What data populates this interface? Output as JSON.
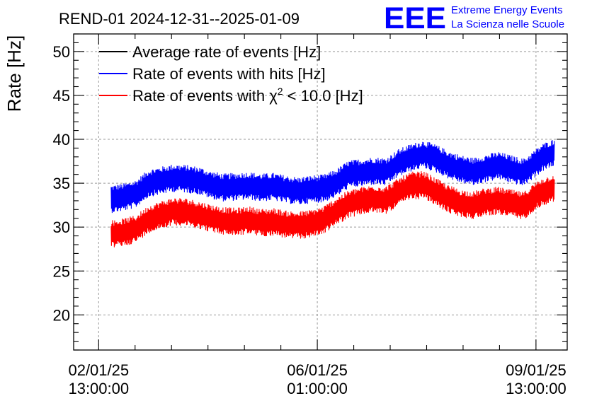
{
  "chart_data": {
    "type": "line",
    "title": "REND-01 2024-12-31--2025-01-09",
    "xlabel": "",
    "ylabel": "Rate [Hz]",
    "ylim": [
      16,
      52
    ],
    "yticks": [
      20,
      25,
      30,
      35,
      40,
      45,
      50
    ],
    "x_unit": "days since 2025-01-02 13:00:00",
    "xlim": [
      -0.4,
      7.5
    ],
    "xticks": [
      {
        "x": 0,
        "date": "02/01/25",
        "time": "13:00:00"
      },
      {
        "x": 3.5,
        "date": "06/01/25",
        "time": "01:00:00"
      },
      {
        "x": 7,
        "date": "09/01/25",
        "time": "13:00:00"
      }
    ],
    "grid": true,
    "legend_position": "top-left",
    "legend": [
      {
        "series": "avg",
        "pre": "Average rate of events [Hz]",
        "sup": "",
        "post": ""
      },
      {
        "series": "hits",
        "pre": "Rate of events with hits [Hz]",
        "sup": "",
        "post": ""
      },
      {
        "series": "chi2",
        "pre": "Rate of events with χ",
        "sup": "2",
        "post": " < 10.0 [Hz]"
      }
    ],
    "series": [
      {
        "id": "avg",
        "name": "Average rate of events [Hz]",
        "color": "#000000",
        "x": [],
        "values": []
      },
      {
        "id": "hits",
        "name": "Rate of events with hits [Hz]",
        "color": "#0000ff",
        "noise_band": 3.2,
        "x": [
          0.2,
          0.4,
          0.6,
          0.8,
          1.0,
          1.2,
          1.4,
          1.6,
          1.8,
          2.0,
          2.2,
          2.4,
          2.6,
          2.8,
          3.0,
          3.2,
          3.4,
          3.6,
          3.8,
          4.0,
          4.2,
          4.4,
          4.6,
          4.8,
          5.0,
          5.2,
          5.4,
          5.6,
          5.8,
          6.0,
          6.2,
          6.4,
          6.6,
          6.8,
          7.0,
          7.1,
          7.3
        ],
        "values": [
          33.2,
          33.4,
          33.8,
          35.0,
          35.3,
          35.6,
          35.5,
          35.3,
          34.8,
          34.5,
          34.6,
          34.7,
          34.5,
          34.6,
          34.3,
          34.1,
          34.3,
          34.4,
          35.0,
          36.0,
          36.2,
          36.4,
          36.3,
          37.3,
          37.9,
          38.3,
          37.8,
          37.1,
          36.6,
          36.3,
          36.7,
          37.0,
          36.6,
          36.2,
          37.3,
          37.9,
          38.5
        ]
      },
      {
        "id": "chi2",
        "name": "Rate of events with χ² < 10.0 [Hz]",
        "color": "#ff0000",
        "noise_band": 3.2,
        "x": [
          0.2,
          0.4,
          0.6,
          0.8,
          1.0,
          1.2,
          1.4,
          1.6,
          1.8,
          2.0,
          2.2,
          2.4,
          2.6,
          2.8,
          3.0,
          3.2,
          3.4,
          3.6,
          3.8,
          4.0,
          4.2,
          4.4,
          4.6,
          4.8,
          5.0,
          5.2,
          5.4,
          5.6,
          5.8,
          6.0,
          6.2,
          6.4,
          6.6,
          6.8,
          7.0,
          7.1,
          7.3
        ],
        "values": [
          29.2,
          29.4,
          29.8,
          30.9,
          31.4,
          31.8,
          31.7,
          31.4,
          31.0,
          30.7,
          30.6,
          30.8,
          30.5,
          30.6,
          30.3,
          30.2,
          30.4,
          30.8,
          31.8,
          32.6,
          33.0,
          33.2,
          33.1,
          34.0,
          34.7,
          34.8,
          34.0,
          33.2,
          32.7,
          32.5,
          32.9,
          33.0,
          32.7,
          32.4,
          33.6,
          34.0,
          34.5
        ]
      }
    ]
  },
  "logo": {
    "mark": "EEE",
    "line1": "Extreme Energy Events",
    "line2": "La Scienza nelle Scuole",
    "color": "#0000ff"
  }
}
